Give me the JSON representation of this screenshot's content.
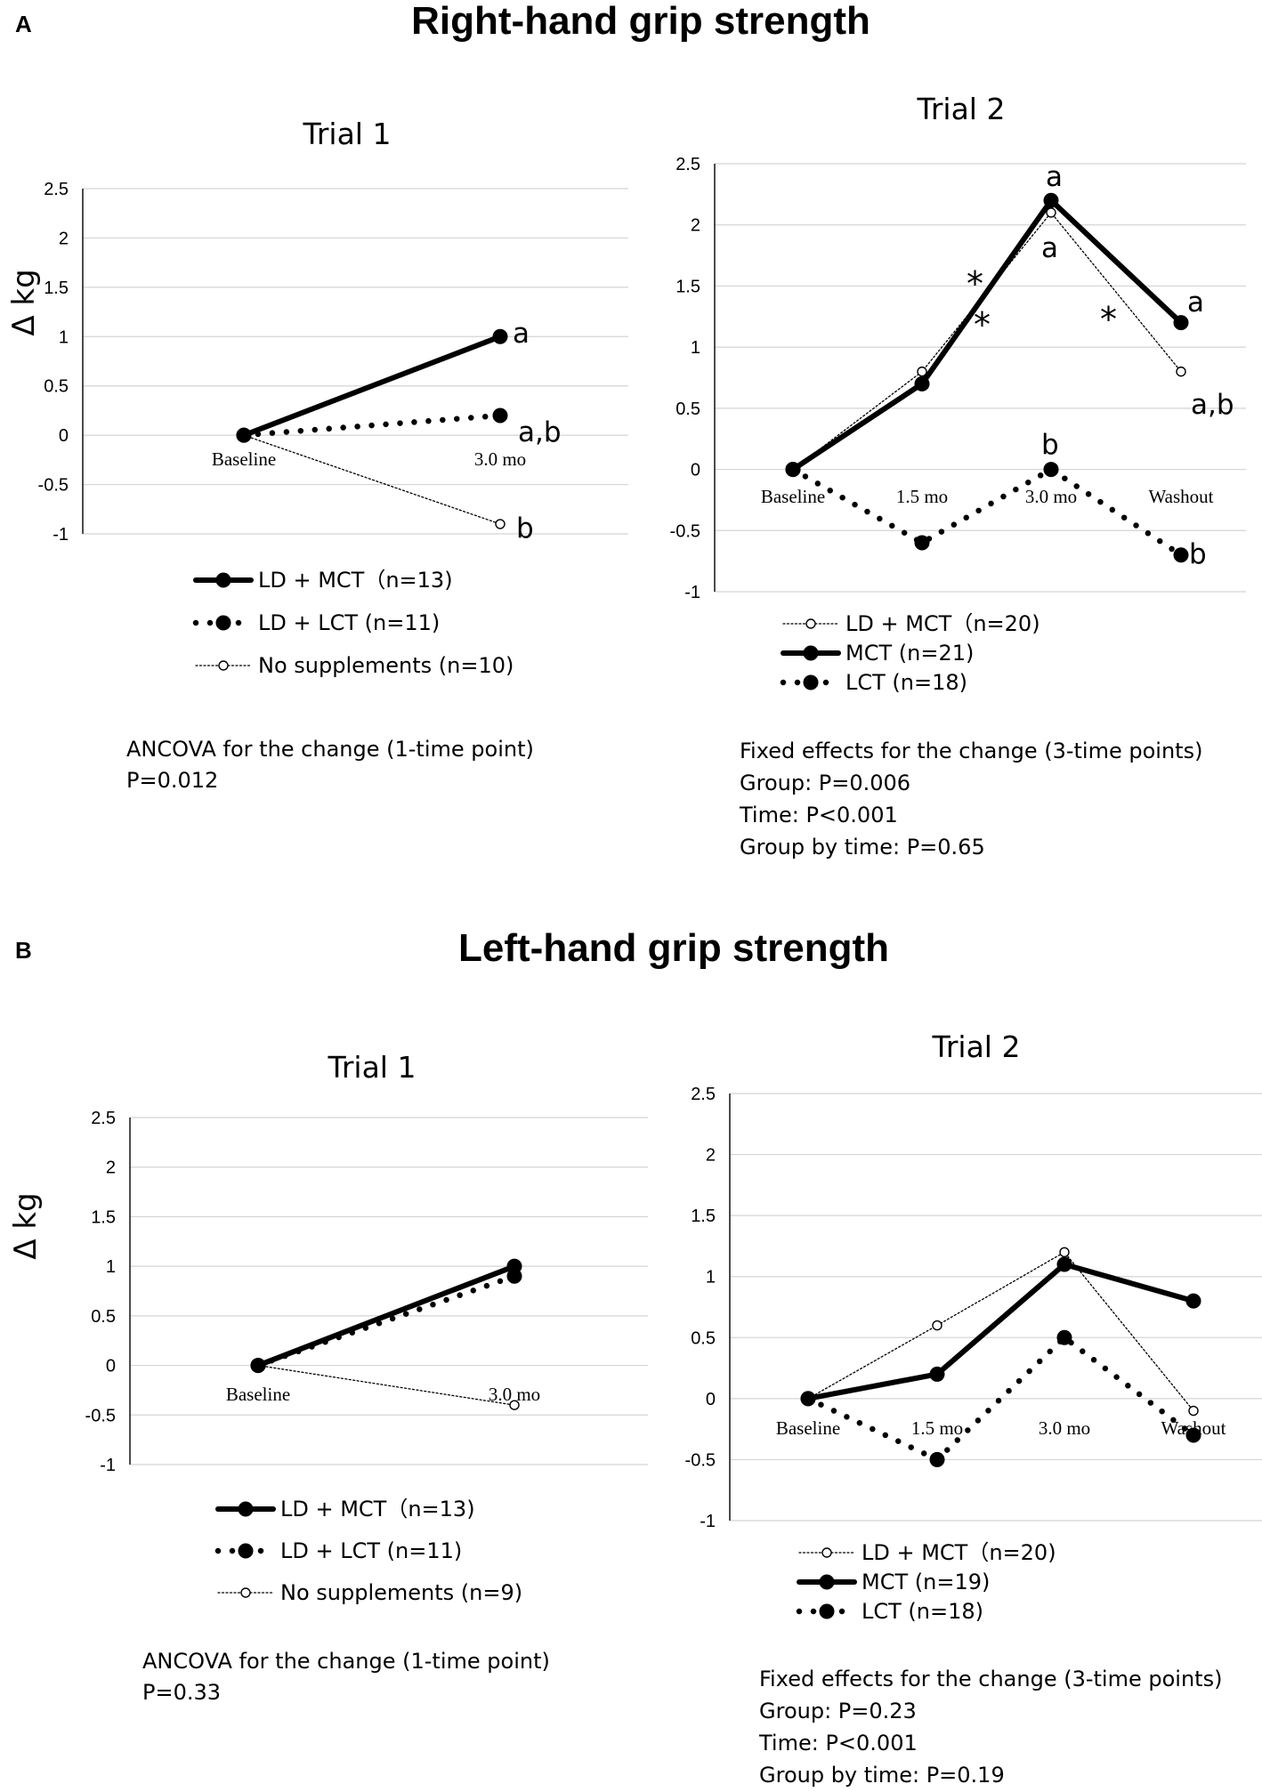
{
  "panels": [
    {
      "letter": "A",
      "title": "Right-hand grip strength",
      "charts": [
        {
          "type": "line",
          "title": "Trial 1",
          "ylabel": "Δ kg",
          "ylim": [
            -1,
            2.5
          ],
          "yticks": [
            "2.5",
            "2",
            "1.5",
            "1",
            "0.5",
            "0",
            "-0.5",
            "-1"
          ],
          "categories": [
            "Baseline",
            "3.0 mo"
          ],
          "series": [
            {
              "name": "LD + MCT（n=13)",
              "style": "solid",
              "values": [
                0,
                1.0
              ]
            },
            {
              "name": "LD + LCT (n=11)",
              "style": "dotted",
              "values": [
                0,
                0.2
              ]
            },
            {
              "name": "No supplements (n=10)",
              "style": "thin",
              "values": [
                0,
                -0.9
              ]
            }
          ],
          "annotations": [
            "a",
            "a,b",
            "b"
          ],
          "stats": [
            "ANCOVA for the change (1-time point)",
            " P=0.012"
          ]
        },
        {
          "type": "line",
          "title": "Trial 2",
          "ylim": [
            -1,
            2.5
          ],
          "yticks": [
            "2.5",
            "2",
            "1.5",
            "1",
            "0.5",
            "0",
            "-0.5",
            "-1"
          ],
          "categories": [
            "Baseline",
            "1.5 mo",
            "3.0 mo",
            "Washout"
          ],
          "series": [
            {
              "name": "LD + MCT（n=20)",
              "style": "thin",
              "values": [
                0,
                0.8,
                2.1,
                0.8
              ]
            },
            {
              "name": "MCT (n=21)",
              "style": "solid",
              "values": [
                0,
                0.7,
                2.2,
                1.2
              ]
            },
            {
              "name": "LCT (n=18)",
              "style": "dotted",
              "values": [
                0,
                -0.6,
                0,
                -0.7
              ]
            }
          ],
          "annotations": [
            "a",
            "a",
            "a",
            "a,b",
            "b",
            "b",
            "*",
            "*",
            "*"
          ],
          "stats": [
            "Fixed effects for the change  (3-time points)",
            "Group: P=0.006",
            "Time: P<0.001",
            "Group by time: P=0.65"
          ]
        }
      ]
    },
    {
      "letter": "B",
      "title": "Left-hand grip strength",
      "charts": [
        {
          "type": "line",
          "title": "Trial 1",
          "ylabel": "Δ kg",
          "ylim": [
            -1,
            2.5
          ],
          "yticks": [
            "2.5",
            "2",
            "1.5",
            "1",
            "0.5",
            "0",
            "-0.5",
            "-1"
          ],
          "categories": [
            "Baseline",
            "3.0 mo"
          ],
          "series": [
            {
              "name": "LD + MCT（n=13)",
              "style": "solid",
              "values": [
                0,
                1.0
              ]
            },
            {
              "name": "LD + LCT (n=11)",
              "style": "dotted",
              "values": [
                0,
                0.9
              ]
            },
            {
              "name": "No supplements (n=9)",
              "style": "thin",
              "values": [
                0,
                -0.4
              ]
            }
          ],
          "annotations": [],
          "stats": [
            "ANCOVA for the change (1-time point)",
            " P=0.33"
          ]
        },
        {
          "type": "line",
          "title": "Trial 2",
          "ylim": [
            -1,
            2.5
          ],
          "yticks": [
            "2.5",
            "2",
            "1.5",
            "1",
            "0.5",
            "0",
            "-0.5",
            "-1"
          ],
          "categories": [
            "Baseline",
            "1.5 mo",
            "3.0 mo",
            "Washout"
          ],
          "series": [
            {
              "name": "LD + MCT（n=20)",
              "style": "thin",
              "values": [
                0,
                0.6,
                1.2,
                -0.1
              ]
            },
            {
              "name": "MCT (n=19)",
              "style": "solid",
              "values": [
                0,
                0.2,
                1.1,
                0.8
              ]
            },
            {
              "name": "LCT (n=18)",
              "style": "dotted",
              "values": [
                0,
                -0.5,
                0.5,
                -0.3
              ]
            }
          ],
          "annotations": [],
          "stats": [
            "Fixed effects for the change  (3-time points)",
            "Group: P=0.23",
            "Time: P<0.001",
            "Group by time: P=0.19"
          ]
        }
      ]
    }
  ],
  "chart_data": [
    {
      "type": "line",
      "title": "Right-hand grip strength — Trial 1",
      "ylabel": "Δ kg",
      "ylim": [
        -1,
        2.5
      ],
      "categories": [
        "Baseline",
        "3.0 mo"
      ],
      "series": [
        {
          "name": "LD + MCT（n=13)",
          "values": [
            0,
            1.0
          ]
        },
        {
          "name": "LD + LCT (n=11)",
          "values": [
            0,
            0.2
          ]
        },
        {
          "name": "No supplements (n=10)",
          "values": [
            0,
            -0.9
          ]
        }
      ]
    },
    {
      "type": "line",
      "title": "Right-hand grip strength — Trial 2",
      "ylim": [
        -1,
        2.5
      ],
      "categories": [
        "Baseline",
        "1.5 mo",
        "3.0 mo",
        "Washout"
      ],
      "series": [
        {
          "name": "LD + MCT（n=20)",
          "values": [
            0,
            0.8,
            2.1,
            0.8
          ]
        },
        {
          "name": "MCT (n=21)",
          "values": [
            0,
            0.7,
            2.2,
            1.2
          ]
        },
        {
          "name": "LCT (n=18)",
          "values": [
            0,
            -0.6,
            0,
            -0.7
          ]
        }
      ]
    },
    {
      "type": "line",
      "title": "Left-hand grip strength — Trial 1",
      "ylabel": "Δ kg",
      "ylim": [
        -1,
        2.5
      ],
      "categories": [
        "Baseline",
        "3.0 mo"
      ],
      "series": [
        {
          "name": "LD + MCT（n=13)",
          "values": [
            0,
            1.0
          ]
        },
        {
          "name": "LD + LCT (n=11)",
          "values": [
            0,
            0.9
          ]
        },
        {
          "name": "No supplements (n=9)",
          "values": [
            0,
            -0.4
          ]
        }
      ]
    },
    {
      "type": "line",
      "title": "Left-hand grip strength — Trial 2",
      "ylim": [
        -1,
        2.5
      ],
      "categories": [
        "Baseline",
        "1.5 mo",
        "3.0 mo",
        "Washout"
      ],
      "series": [
        {
          "name": "LD + MCT（n=20)",
          "values": [
            0,
            0.6,
            1.2,
            -0.1
          ]
        },
        {
          "name": "MCT (n=19)",
          "values": [
            0,
            0.2,
            1.1,
            0.8
          ]
        },
        {
          "name": "LCT (n=18)",
          "values": [
            0,
            -0.5,
            0.5,
            -0.3
          ]
        }
      ]
    }
  ]
}
